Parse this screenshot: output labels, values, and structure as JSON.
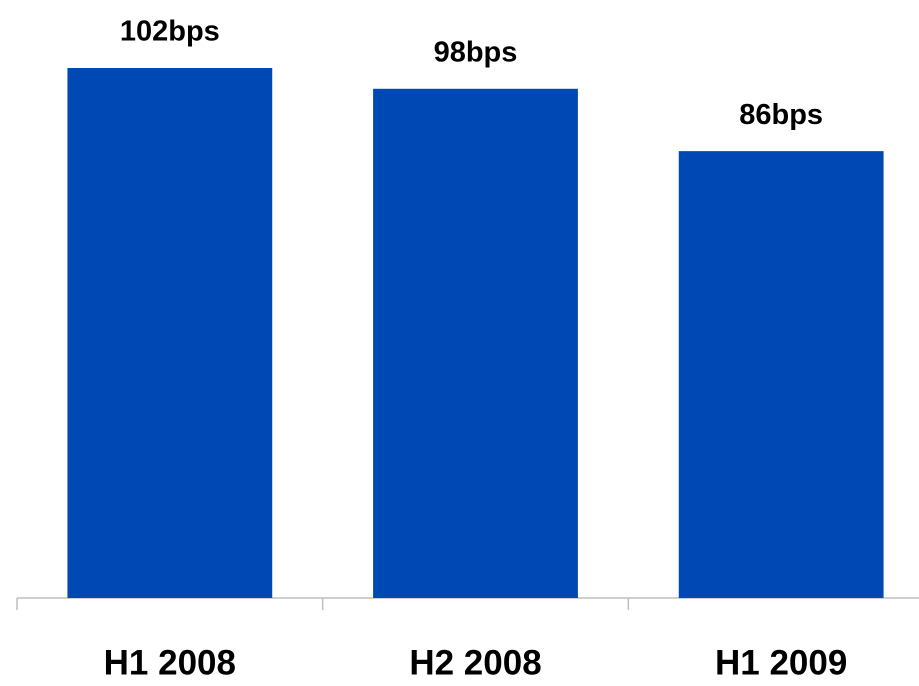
{
  "chart_data": {
    "type": "bar",
    "categories": [
      "H1 2008",
      "H2 2008",
      "H1 2009"
    ],
    "values": [
      102,
      98,
      86
    ],
    "value_labels": [
      "102bps",
      "98bps",
      "86bps"
    ],
    "color": "#0048b4"
  }
}
